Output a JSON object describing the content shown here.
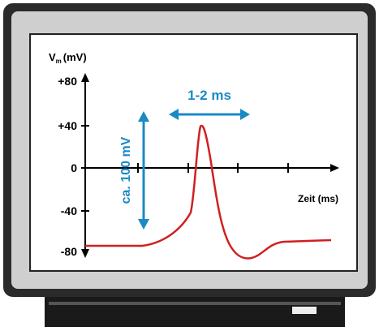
{
  "screen": {
    "y_axis_label": {
      "symbol": "V",
      "subscript": "m",
      "unit": "(mV)"
    },
    "y_ticks": [
      "+80",
      "+40",
      "0",
      "-40",
      "-80"
    ],
    "x_axis_label": "Zeit (ms)",
    "duration_annotation": "1-2 ms",
    "amplitude_annotation": "ca. 100 mV"
  }
}
